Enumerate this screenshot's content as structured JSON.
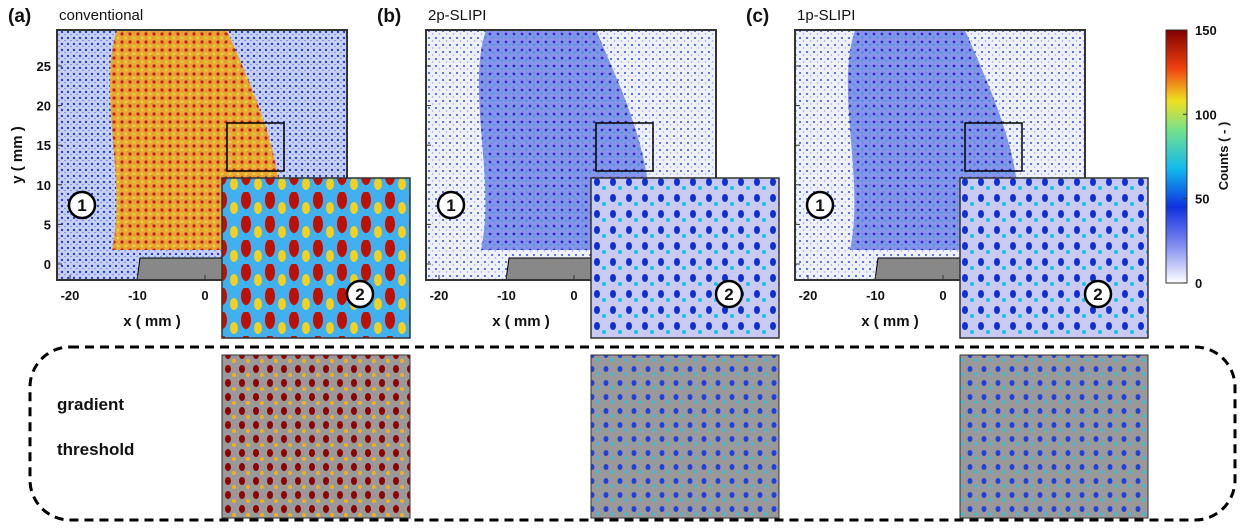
{
  "panels": [
    {
      "label": "(a)",
      "title": "conventional"
    },
    {
      "label": "(b)",
      "title": "2p-SLIPI"
    },
    {
      "label": "(c)",
      "title": "1p-SLIPI"
    }
  ],
  "x_axis": {
    "label": "x ( mm )",
    "ticks": [
      "-20",
      "-10",
      "0"
    ]
  },
  "y_axis": {
    "label": "y ( mm )",
    "ticks": [
      "25",
      "20",
      "15",
      "10",
      "5",
      "0"
    ]
  },
  "markers": [
    "1",
    "2"
  ],
  "colorbar": {
    "label": "Counts ( - )",
    "ticks": [
      "150",
      "100",
      "50",
      "0"
    ]
  },
  "bottom_row": {
    "label": [
      "gradient",
      "threshold"
    ]
  }
}
